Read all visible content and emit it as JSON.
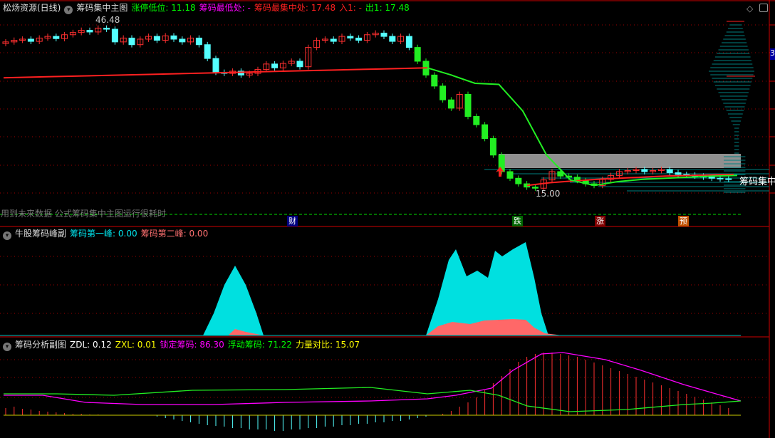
{
  "main": {
    "stock_name": "松炀资源(日线)",
    "indicator": "筹码集中主图",
    "fields": [
      {
        "label": "涨停低位",
        "value": "11.18",
        "color": "#00ff00"
      },
      {
        "label": "筹码最低处",
        "value": "-",
        "color": "#ff00ff"
      },
      {
        "label": "筹码最集中处",
        "value": "17.48",
        "color": "#ff2020"
      },
      {
        "label": "入1",
        "value": "-",
        "color": "#ff2020"
      },
      {
        "label": "出1",
        "value": "17.48",
        "color": "#00ff00"
      }
    ],
    "high_label": "46.48",
    "low_label": "15.00",
    "chip_label": "筹码集中",
    "warning": "用到未来数据 公式筹码集中主图运行很耗时",
    "price_box": "3",
    "events": [
      {
        "text": "财",
        "bg": "#000080"
      },
      {
        "text": "跌",
        "bg": "#006400"
      },
      {
        "text": "涨",
        "bg": "#800000"
      },
      {
        "text": "预",
        "bg": "#c05000"
      }
    ],
    "price_high": 46.48,
    "price_low": 15.0,
    "closes": [
      42.5,
      42.8,
      43.0,
      42.6,
      43.2,
      43.5,
      43.1,
      43.8,
      44.2,
      44.6,
      44.3,
      45.0,
      44.8,
      42.5,
      43.2,
      42.0,
      43.0,
      43.5,
      42.8,
      43.6,
      43.0,
      42.5,
      43.2,
      42.0,
      39.5,
      37.0,
      36.8,
      37.2,
      36.5,
      36.8,
      37.5,
      38.5,
      37.8,
      38.6,
      39.0,
      38.0,
      41.5,
      42.8,
      43.0,
      42.6,
      43.5,
      43.2,
      42.8,
      43.8,
      44.1,
      43.5,
      42.6,
      43.5,
      41.5,
      39.0,
      36.5,
      34.5,
      32.0,
      30.5,
      33.0,
      29.0,
      27.5,
      25.0,
      22.0,
      19.0,
      17.8,
      16.8,
      16.2,
      16.0,
      17.5,
      19.0,
      18.2,
      18.0,
      17.4,
      16.8,
      16.5,
      17.6,
      18.3,
      19.0,
      19.2,
      19.4,
      19.0,
      19.2,
      19.4,
      18.8,
      18.5,
      18.4,
      18.2,
      18.0,
      17.8,
      17.7,
      17.6
    ],
    "cost_line_red": [
      36.0,
      36.2,
      36.4,
      36.6,
      36.8,
      37.0,
      37.2,
      37.4,
      37.6,
      37.8
    ],
    "cost_line_red_late": [
      16.5,
      17.0,
      17.3,
      17.6,
      17.8,
      18.0,
      18.2,
      18.3,
      18.4,
      18.5
    ],
    "cost_line_green": [
      37.8,
      36.5,
      35.0,
      34.8,
      30.0,
      22.0,
      17.5,
      16.5,
      17.2,
      17.6,
      17.8,
      18.0,
      18.2,
      18.3
    ]
  },
  "sub1": {
    "indicator": "牛股筹码峰副",
    "fields": [
      {
        "label": "筹码第一峰",
        "value": "0.00",
        "color": "#00e5ee"
      },
      {
        "label": "筹码第二峰",
        "value": "0.00",
        "color": "#ff7070"
      }
    ]
  },
  "sub2": {
    "indicator": "筹码分析副图",
    "fields": [
      {
        "label": "ZDL",
        "value": "0.12",
        "color": "#ffffff"
      },
      {
        "label": "ZXL",
        "value": "0.01",
        "color": "#ffff00"
      },
      {
        "label": "锁定筹码",
        "value": "86.30",
        "color": "#ff00ff"
      },
      {
        "label": "浮动筹码",
        "value": "71.22",
        "color": "#00ff00"
      },
      {
        "label": "力量对比",
        "value": "15.07",
        "color": "#ffff00"
      }
    ],
    "bars": [
      10,
      12,
      9,
      8,
      6,
      5,
      4,
      3,
      2,
      2,
      1,
      1,
      0,
      0,
      0,
      0,
      0,
      0,
      -2,
      -4,
      -6,
      -8,
      -10,
      -12,
      -14,
      -15,
      -16,
      -18,
      -18,
      -20,
      -20,
      -20,
      -22,
      -22,
      -20,
      -20,
      -18,
      -18,
      -16,
      -16,
      -14,
      -14,
      -12,
      -12,
      -10,
      -10,
      -8,
      -8,
      -6,
      -4,
      -2,
      0,
      2,
      6,
      12,
      18,
      25,
      35,
      45,
      55,
      65,
      75,
      82,
      86,
      88,
      88,
      86,
      84,
      82,
      78,
      74,
      70,
      66,
      62,
      58,
      54,
      50,
      46,
      42,
      38,
      34,
      30,
      26,
      22,
      18,
      14,
      10
    ]
  },
  "colors": {
    "up": "#ff3030",
    "down": "#54ffff",
    "down_green": "#22ee22",
    "grid": "#a00000",
    "axis": "#d00000"
  }
}
